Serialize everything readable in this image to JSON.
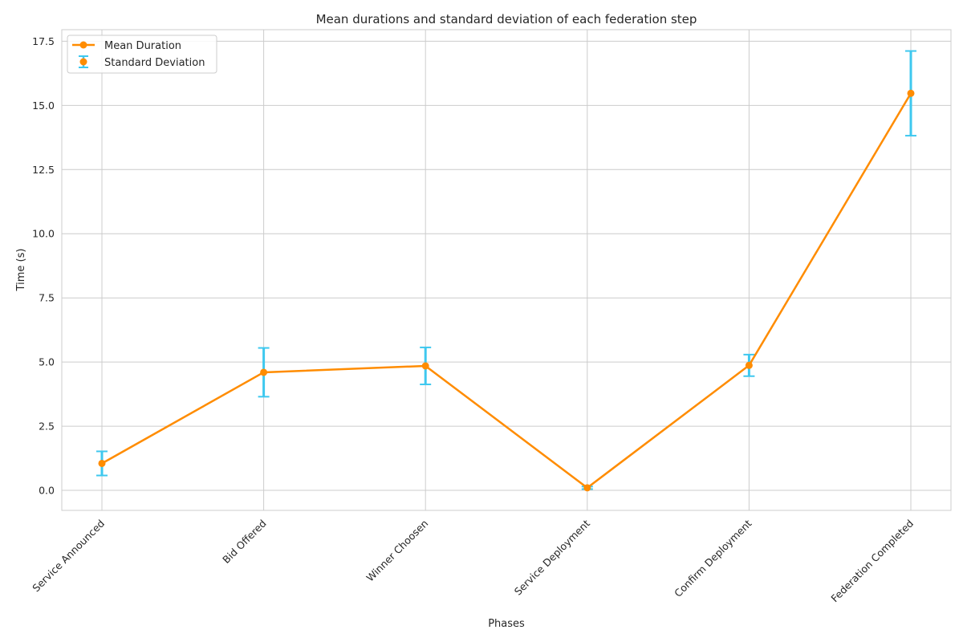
{
  "chart_data": {
    "type": "line",
    "title": "Mean durations and standard deviation of each federation step",
    "xlabel": "Phases",
    "ylabel": "Time (s)",
    "categories": [
      "Service Announced",
      "Bid Offered",
      "Winner Choosen",
      "Service Deployment",
      "Confirm Deployment",
      "Federation Completed"
    ],
    "series": [
      {
        "name": "Mean Duration",
        "values": [
          1.05,
          4.6,
          4.85,
          0.1,
          4.87,
          15.47
        ],
        "color": "#ff8c00"
      }
    ],
    "error_bars": {
      "name": "Standard Deviation",
      "values": [
        0.47,
        0.95,
        0.72,
        0.05,
        0.42,
        1.65
      ],
      "color": "#3ec8ef"
    },
    "ylim": [
      -0.78,
      17.95
    ],
    "yticks": [
      0.0,
      2.5,
      5.0,
      7.5,
      10.0,
      12.5,
      15.0,
      17.5
    ],
    "ytick_labels": [
      "0.0",
      "2.5",
      "5.0",
      "7.5",
      "10.0",
      "12.5",
      "15.0",
      "17.5"
    ],
    "grid": true,
    "legend_position": "top-left"
  }
}
